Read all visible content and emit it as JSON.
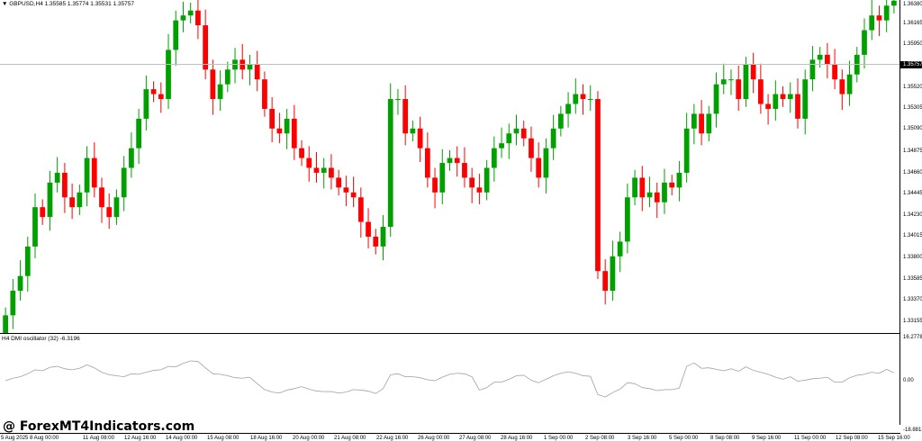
{
  "header": {
    "symbol_line": "GBPUSD,H4  1.35585 1.35774 1.35531 1.35757",
    "dropdown_icon": "triangle-down-icon"
  },
  "current_price": "1.35757",
  "price_axis": [
    "1.36380",
    "1.36165",
    "1.35950",
    "1.35757",
    "1.35520",
    "1.35305",
    "1.35090",
    "1.34875",
    "1.34660",
    "1.34445",
    "1.34230",
    "1.34015",
    "1.33800",
    "1.33585",
    "1.33370",
    "1.33155"
  ],
  "oscillator": {
    "title": "H4 DMI oscillator (32) -6.3196",
    "axis": [
      "16.2778",
      "0.00",
      "-18.8813"
    ]
  },
  "time_axis": [
    "5 Aug 2025",
    "8 Aug 00:00",
    "11 Aug 08:00",
    "12 Aug 16:00",
    "14 Aug 00:00",
    "15 Aug 08:00",
    "18 Aug 16:00",
    "20 Aug 00:00",
    "21 Aug 08:00",
    "22 Aug 16:00",
    "26 Aug 00:00",
    "27 Aug 08:00",
    "28 Aug 16:00",
    "1 Sep 00:00",
    "2 Sep 08:00",
    "3 Sep 16:00",
    "5 Sep 00:00",
    "8 Sep 08:00",
    "9 Sep 16:00",
    "11 Sep 00:00",
    "12 Sep 08:00",
    "15 Sep 16:00"
  ],
  "watermark": "@ ForexMT4Indicators.com",
  "colors": {
    "bull": "#00a000",
    "bear": "#ff0000",
    "osc_up": "#00c800",
    "osc_down": "#ff4000",
    "osc_neutral": "#a0a0a0"
  },
  "chart_data": {
    "type": "candlestick",
    "closes": [
      1.332,
      1.3345,
      1.336,
      1.339,
      1.343,
      1.342,
      1.3455,
      1.3465,
      1.344,
      1.343,
      1.3445,
      1.348,
      1.345,
      1.343,
      1.342,
      1.344,
      1.347,
      1.349,
      1.352,
      1.355,
      1.3545,
      1.354,
      1.359,
      1.362,
      1.3625,
      1.363,
      1.3615,
      1.357,
      1.354,
      1.3555,
      1.357,
      1.358,
      1.357,
      1.3575,
      1.356,
      1.353,
      1.351,
      1.3505,
      1.352,
      1.349,
      1.348,
      1.347,
      1.3465,
      1.347,
      1.346,
      1.345,
      1.3445,
      1.344,
      1.3415,
      1.34,
      1.339,
      1.341,
      1.354,
      1.354,
      1.3505,
      1.351,
      1.349,
      1.346,
      1.3445,
      1.3475,
      1.348,
      1.3475,
      1.346,
      1.345,
      1.3445,
      1.347,
      1.349,
      1.3495,
      1.3505,
      1.351,
      1.35,
      1.348,
      1.346,
      1.349,
      1.351,
      1.3525,
      1.3535,
      1.3545,
      1.354,
      1.354,
      1.3365,
      1.3345,
      1.338,
      1.3395,
      1.344,
      1.346,
      1.344,
      1.3445,
      1.3435,
      1.3455,
      1.345,
      1.3465,
      1.351,
      1.3525,
      1.3505,
      1.3525,
      1.3555,
      1.356,
      1.356,
      1.354,
      1.3575,
      1.356,
      1.3535,
      1.353,
      1.3545,
      1.354,
      1.3545,
      1.352,
      1.356,
      1.358,
      1.3585,
      1.3575,
      1.356,
      1.3545,
      1.3565,
      1.3585,
      1.361,
      1.3625,
      1.362,
      1.3635,
      1.364
    ]
  }
}
